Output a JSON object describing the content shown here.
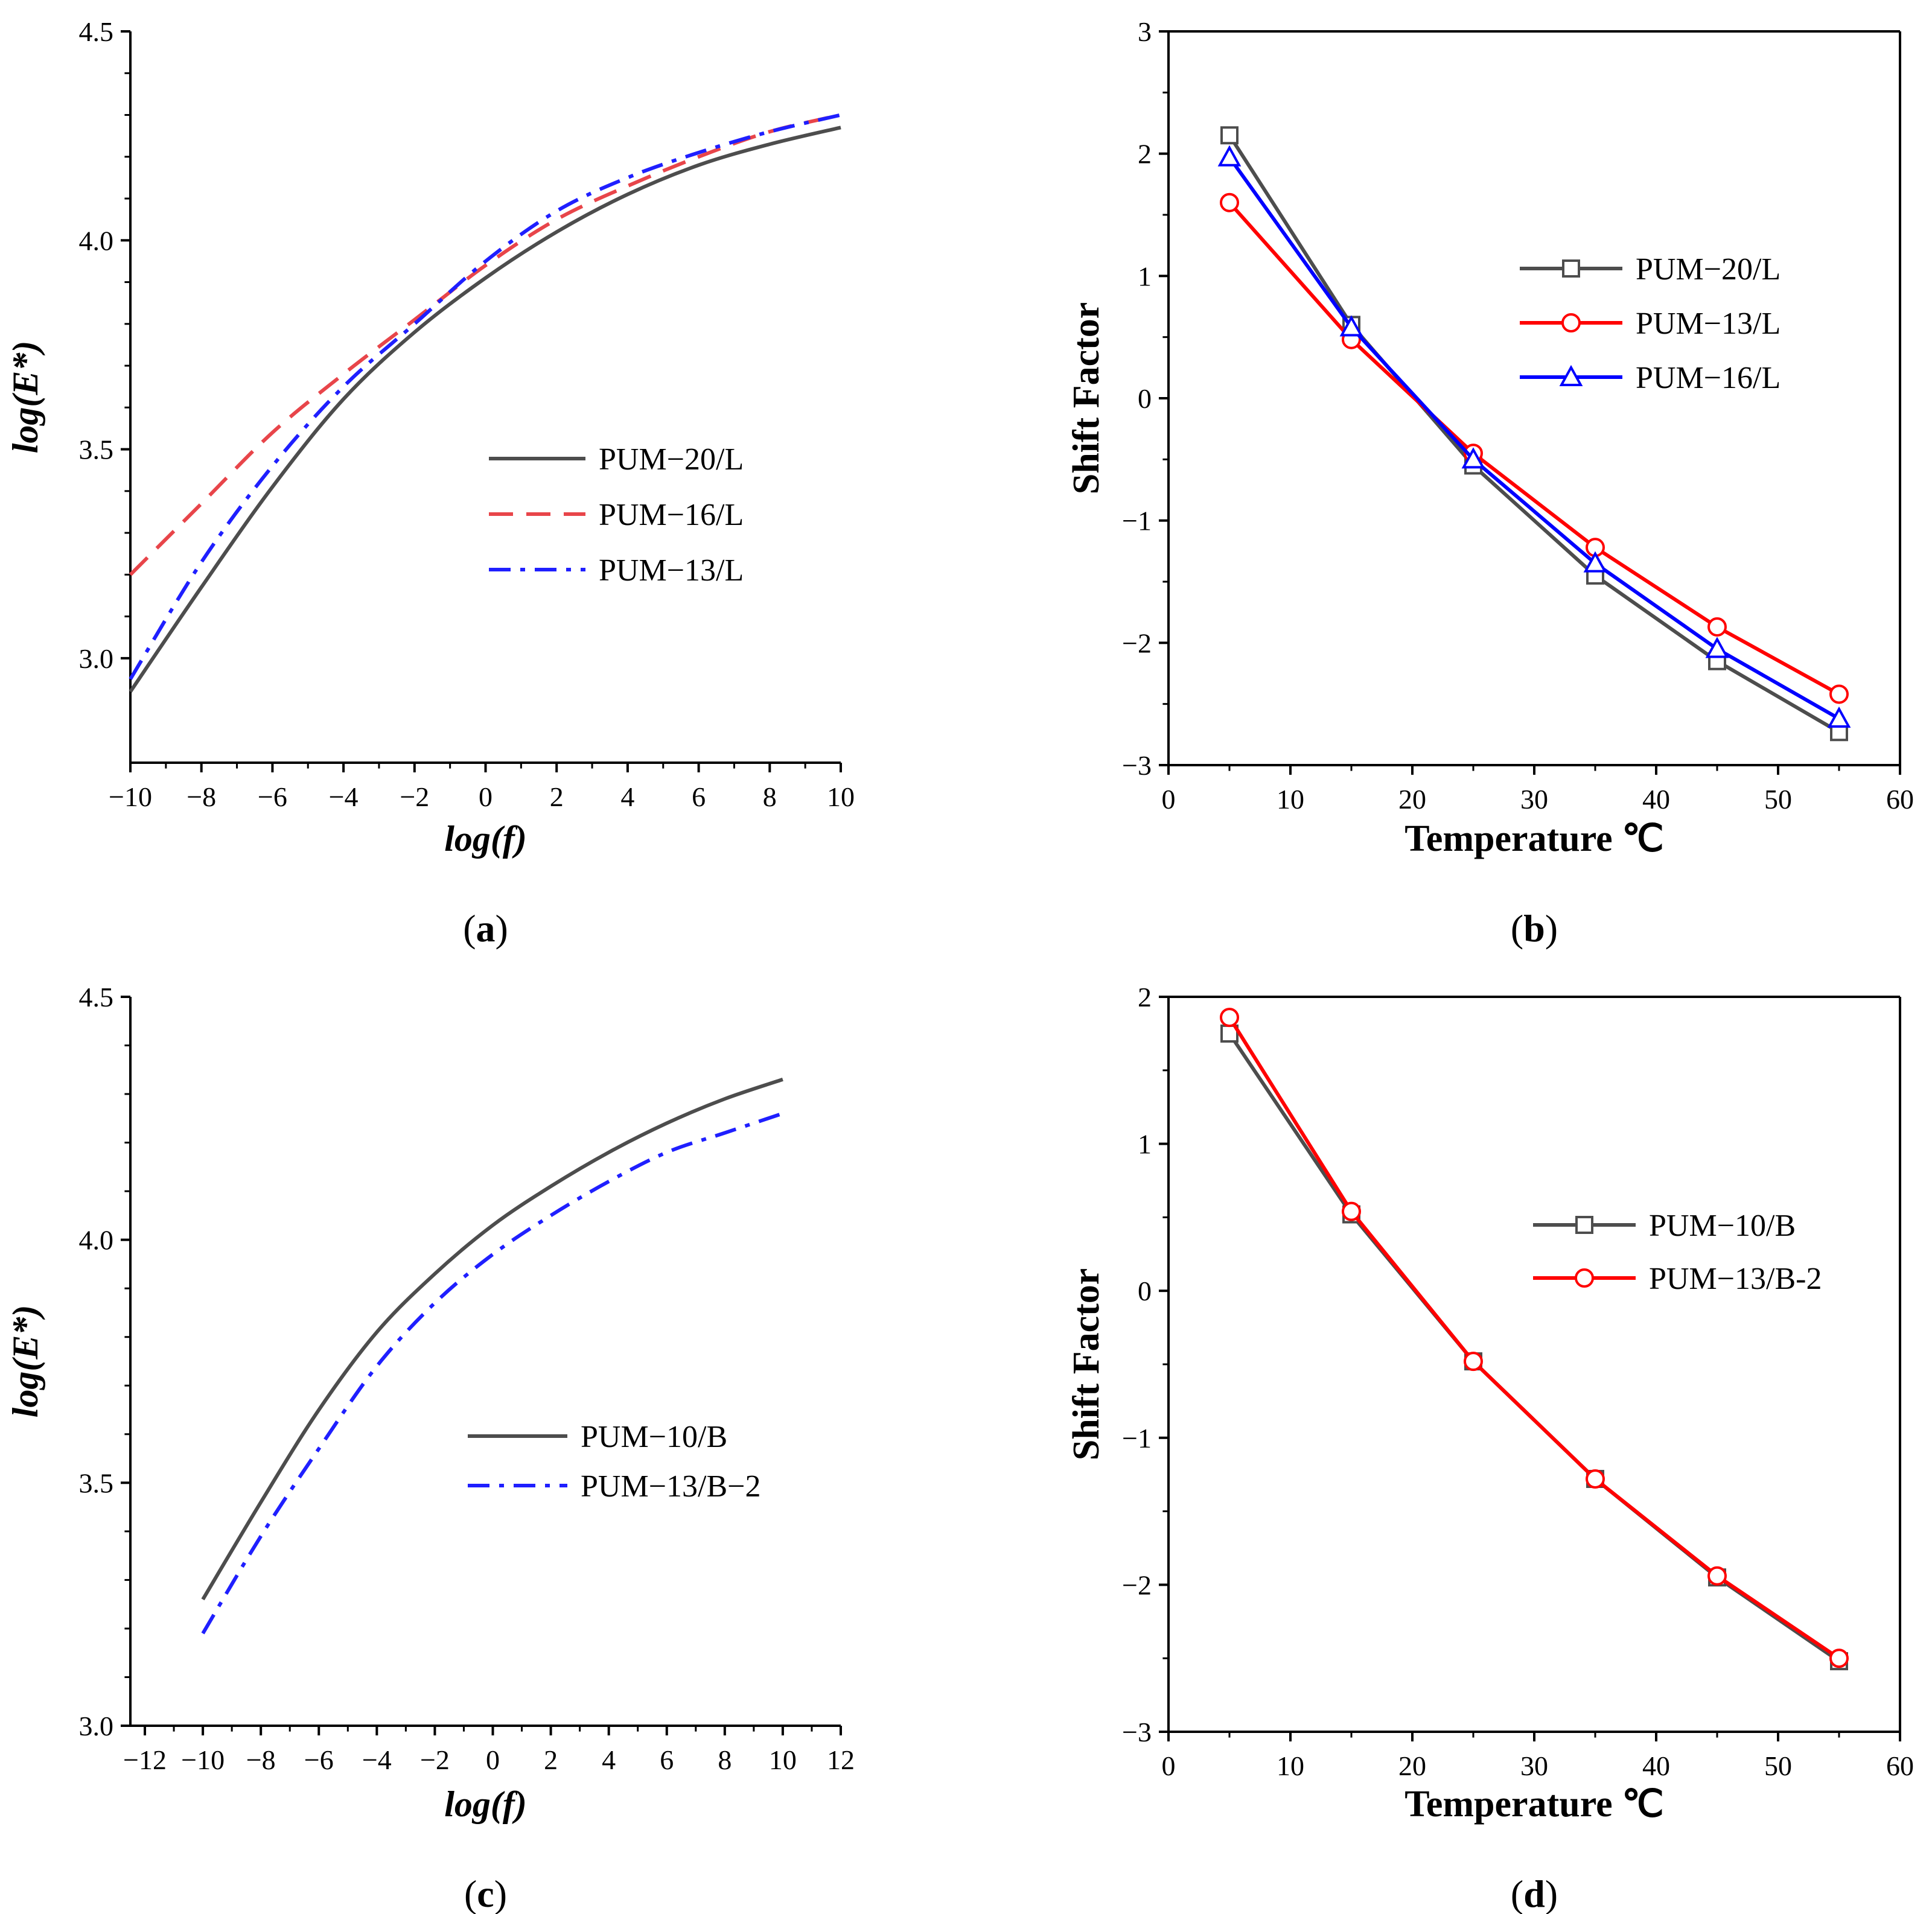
{
  "chart_data": [
    {
      "id": "a",
      "type": "line",
      "caption": "a",
      "xlabel": "log(f)",
      "ylabel": "log(E*)",
      "xlim": [
        -10,
        10
      ],
      "ylim": [
        2.75,
        4.5
      ],
      "xticks": [
        -10,
        -8,
        -6,
        -4,
        -2,
        0,
        2,
        4,
        6,
        8,
        10
      ],
      "yticks": [
        3.0,
        3.5,
        4.0,
        4.5
      ],
      "xtick_labels": [
        "−10",
        "−8",
        "−6",
        "−4",
        "−2",
        "0",
        "2",
        "4",
        "6",
        "8",
        "10"
      ],
      "ytick_labels": [
        "3.0",
        "3.5",
        "4.0",
        "4.5"
      ],
      "x": [
        -10,
        -8,
        -6,
        -4,
        -2,
        0,
        2,
        4,
        6,
        8,
        10
      ],
      "series": [
        {
          "name": "PUM−20/L",
          "color": "#4d4d4d",
          "style": "solid",
          "values": [
            2.92,
            3.17,
            3.41,
            3.62,
            3.78,
            3.91,
            4.02,
            4.11,
            4.18,
            4.23,
            4.27
          ]
        },
        {
          "name": "PUM−16/L",
          "color": "#e8454a",
          "style": "dash",
          "values": [
            3.2,
            3.37,
            3.54,
            3.68,
            3.81,
            3.94,
            4.05,
            4.13,
            4.2,
            4.26,
            4.3
          ]
        },
        {
          "name": "PUM−13/L",
          "color": "#1f1fff",
          "style": "dashdot",
          "values": [
            2.95,
            3.23,
            3.46,
            3.65,
            3.8,
            3.95,
            4.07,
            4.15,
            4.21,
            4.26,
            4.3
          ]
        }
      ],
      "legend_position": "center-right"
    },
    {
      "id": "b",
      "type": "line",
      "caption": "b",
      "xlabel": "Temperature ℃",
      "ylabel": "Shift Factor",
      "xlim": [
        0,
        60
      ],
      "ylim": [
        -3,
        3
      ],
      "xticks": [
        0,
        10,
        20,
        30,
        40,
        50,
        60
      ],
      "yticks": [
        -3,
        -2,
        -1,
        0,
        1,
        2,
        3
      ],
      "xtick_labels": [
        "0",
        "10",
        "20",
        "30",
        "40",
        "50",
        "60"
      ],
      "ytick_labels": [
        "−3",
        "−2",
        "−1",
        "0",
        "1",
        "2",
        "3"
      ],
      "x": [
        5,
        15,
        25,
        35,
        45,
        55
      ],
      "series": [
        {
          "name": "PUM−20/L",
          "color": "#4d4d4d",
          "marker": "square",
          "values": [
            2.15,
            0.6,
            -0.55,
            -1.45,
            -2.15,
            -2.73
          ]
        },
        {
          "name": "PUM−13/L",
          "color": "#ff0000",
          "marker": "circle",
          "values": [
            1.6,
            0.48,
            -0.45,
            -1.22,
            -1.87,
            -2.42
          ]
        },
        {
          "name": "PUM−16/L",
          "color": "#0000ff",
          "marker": "triangle",
          "values": [
            1.97,
            0.58,
            -0.5,
            -1.35,
            -2.05,
            -2.62
          ]
        }
      ],
      "legend_position": "upper-right"
    },
    {
      "id": "c",
      "type": "line",
      "caption": "c",
      "xlabel": "log(f)",
      "ylabel": "log(E*)",
      "xlim": [
        -12.5,
        12
      ],
      "ylim": [
        3.0,
        4.5
      ],
      "xticks": [
        -12,
        -10,
        -8,
        -6,
        -4,
        -2,
        0,
        2,
        4,
        6,
        8,
        10,
        12
      ],
      "yticks": [
        3.0,
        3.5,
        4.0,
        4.5
      ],
      "xtick_labels": [
        "−12",
        "−10",
        "−8",
        "−6",
        "−4",
        "−2",
        "0",
        "2",
        "4",
        "6",
        "8",
        "10",
        "12"
      ],
      "ytick_labels": [
        "3.0",
        "3.5",
        "4.0",
        "4.5"
      ],
      "x": [
        -10,
        -8,
        -6,
        -4,
        -2,
        0,
        2,
        4,
        6,
        8,
        10
      ],
      "series": [
        {
          "name": "PUM−10/B",
          "color": "#4d4d4d",
          "style": "solid",
          "values": [
            3.26,
            3.46,
            3.65,
            3.81,
            3.93,
            4.03,
            4.11,
            4.18,
            4.24,
            4.29,
            4.33
          ]
        },
        {
          "name": "PUM−13/B−2",
          "color": "#1f1fff",
          "style": "dashdot",
          "values": [
            3.19,
            3.39,
            3.57,
            3.74,
            3.87,
            3.97,
            4.05,
            4.12,
            4.18,
            4.22,
            4.26
          ]
        }
      ],
      "legend_position": "center-right"
    },
    {
      "id": "d",
      "type": "line",
      "caption": "d",
      "xlabel": "Temperature ℃",
      "ylabel": "Shift Factor",
      "xlim": [
        0,
        60
      ],
      "ylim": [
        -3,
        2
      ],
      "xticks": [
        0,
        10,
        20,
        30,
        40,
        50,
        60
      ],
      "yticks": [
        -3,
        -2,
        -1,
        0,
        1,
        2
      ],
      "xtick_labels": [
        "0",
        "10",
        "20",
        "30",
        "40",
        "50",
        "60"
      ],
      "ytick_labels": [
        "−3",
        "−2",
        "−1",
        "0",
        "1",
        "2"
      ],
      "x": [
        5,
        15,
        25,
        35,
        45,
        55
      ],
      "series": [
        {
          "name": "PUM−10/B",
          "color": "#4d4d4d",
          "marker": "square",
          "values": [
            1.75,
            0.52,
            -0.48,
            -1.28,
            -1.95,
            -2.52
          ]
        },
        {
          "name": "PUM−13/B-2",
          "color": "#ff0000",
          "marker": "circle",
          "values": [
            1.86,
            0.54,
            -0.48,
            -1.28,
            -1.94,
            -2.5
          ]
        }
      ],
      "legend_position": "upper-right"
    }
  ]
}
